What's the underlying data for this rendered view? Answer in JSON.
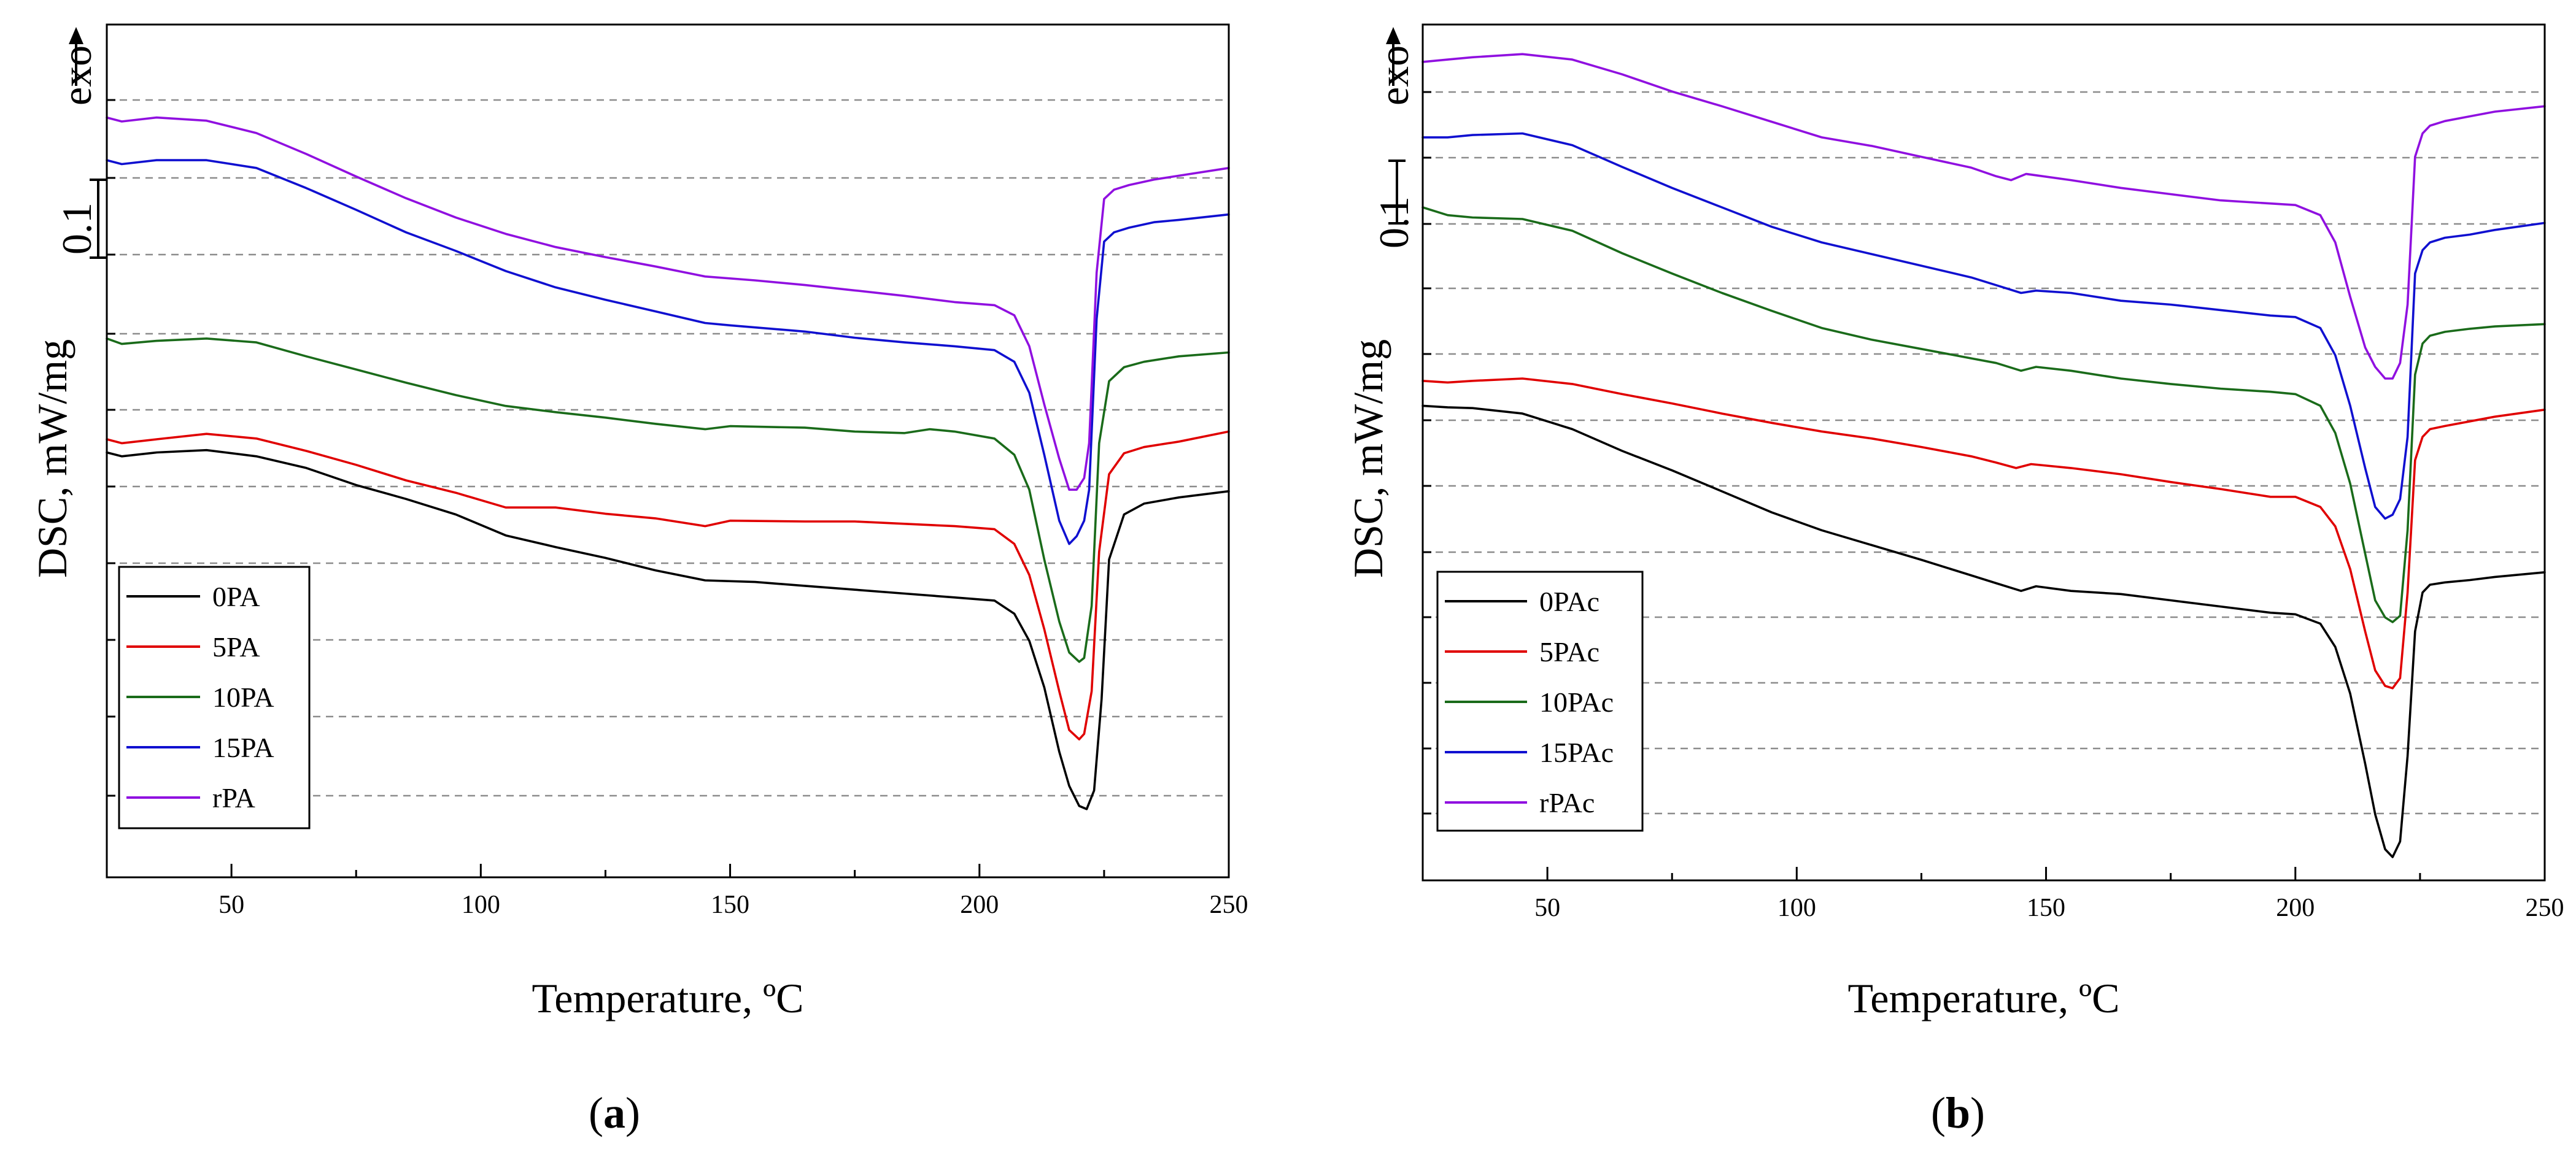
{
  "chart_data": [
    {
      "type": "line",
      "panel_label": "a",
      "xlabel": "Temperature, ºC",
      "ylabel": "DSC, mW/mg",
      "exo_label": "exo",
      "scale_bar_label": "0.1",
      "scale_bar_value": 0.1,
      "xlim": [
        25,
        250
      ],
      "ylim": [
        0,
        1.1
      ],
      "xticks": [
        50,
        100,
        150,
        200,
        250
      ],
      "grid": "horizontal dashed",
      "legend_position": "bottom-left",
      "series": [
        {
          "name": "0PA",
          "color": "#000000",
          "x": [
            25,
            28,
            35,
            45,
            55,
            65,
            75,
            85,
            95,
            105,
            115,
            125,
            135,
            145,
            155,
            165,
            175,
            185,
            195,
            203,
            207,
            210,
            213,
            216,
            218,
            220,
            221.5,
            223,
            224.5,
            226,
            229,
            233,
            240,
            250
          ],
          "y": [
            0.548,
            0.543,
            0.548,
            0.551,
            0.543,
            0.528,
            0.506,
            0.488,
            0.468,
            0.441,
            0.426,
            0.412,
            0.396,
            0.383,
            0.381,
            0.376,
            0.371,
            0.366,
            0.361,
            0.357,
            0.34,
            0.305,
            0.245,
            0.162,
            0.118,
            0.092,
            0.088,
            0.112,
            0.23,
            0.41,
            0.468,
            0.482,
            0.49,
            0.498
          ]
        },
        {
          "name": "5PA",
          "color": "#e00000",
          "x": [
            25,
            28,
            35,
            45,
            55,
            65,
            75,
            85,
            95,
            105,
            115,
            125,
            135,
            145,
            150,
            165,
            175,
            185,
            195,
            203,
            207,
            210,
            213,
            216,
            218,
            220,
            221,
            222.5,
            224,
            226,
            229,
            233,
            240,
            250
          ],
          "y": [
            0.565,
            0.56,
            0.565,
            0.572,
            0.566,
            0.55,
            0.532,
            0.512,
            0.496,
            0.477,
            0.477,
            0.469,
            0.463,
            0.453,
            0.46,
            0.459,
            0.459,
            0.456,
            0.453,
            0.449,
            0.43,
            0.39,
            0.32,
            0.24,
            0.19,
            0.178,
            0.185,
            0.24,
            0.42,
            0.52,
            0.547,
            0.555,
            0.562,
            0.575
          ]
        },
        {
          "name": "10PA",
          "color": "#1a6b1a",
          "x": [
            25,
            28,
            35,
            45,
            55,
            65,
            75,
            85,
            95,
            105,
            115,
            125,
            135,
            145,
            150,
            165,
            175,
            185,
            190,
            195,
            203,
            207,
            210,
            213,
            216,
            218,
            220,
            221,
            222.5,
            224,
            226,
            229,
            233,
            240,
            250
          ],
          "y": [
            0.695,
            0.688,
            0.692,
            0.695,
            0.69,
            0.672,
            0.655,
            0.638,
            0.622,
            0.608,
            0.6,
            0.593,
            0.585,
            0.578,
            0.582,
            0.58,
            0.575,
            0.573,
            0.578,
            0.575,
            0.566,
            0.545,
            0.5,
            0.41,
            0.33,
            0.29,
            0.278,
            0.283,
            0.35,
            0.56,
            0.64,
            0.658,
            0.665,
            0.672,
            0.677
          ]
        },
        {
          "name": "15PA",
          "color": "#1010d0",
          "x": [
            25,
            28,
            35,
            45,
            55,
            65,
            75,
            85,
            95,
            105,
            115,
            125,
            135,
            145,
            150,
            165,
            175,
            185,
            195,
            203,
            207,
            210,
            213,
            216,
            218,
            219.5,
            221,
            222,
            223.5,
            225,
            227,
            230,
            235,
            240,
            250
          ],
          "y": [
            0.925,
            0.92,
            0.925,
            0.925,
            0.915,
            0.889,
            0.861,
            0.832,
            0.808,
            0.782,
            0.761,
            0.745,
            0.73,
            0.715,
            0.712,
            0.704,
            0.696,
            0.69,
            0.685,
            0.68,
            0.665,
            0.625,
            0.545,
            0.46,
            0.43,
            0.44,
            0.46,
            0.5,
            0.72,
            0.82,
            0.832,
            0.838,
            0.845,
            0.848,
            0.855
          ]
        },
        {
          "name": "rPA",
          "color": "#9010e0",
          "x": [
            25,
            28,
            35,
            45,
            55,
            65,
            75,
            85,
            95,
            105,
            115,
            125,
            135,
            145,
            155,
            165,
            175,
            185,
            195,
            203,
            207,
            210,
            213,
            216,
            218,
            219.5,
            221,
            222,
            223.5,
            225,
            227,
            230,
            235,
            240,
            250
          ],
          "y": [
            0.98,
            0.975,
            0.98,
            0.976,
            0.96,
            0.933,
            0.904,
            0.876,
            0.851,
            0.83,
            0.813,
            0.8,
            0.788,
            0.775,
            0.77,
            0.764,
            0.757,
            0.75,
            0.742,
            0.738,
            0.725,
            0.685,
            0.61,
            0.54,
            0.5,
            0.5,
            0.515,
            0.56,
            0.78,
            0.875,
            0.887,
            0.893,
            0.9,
            0.905,
            0.915
          ]
        }
      ]
    },
    {
      "type": "line",
      "panel_label": "b",
      "xlabel": "Temperature, ºC",
      "ylabel": "DSC, mW/mg",
      "exo_label": "exo",
      "scale_bar_label": "0.1",
      "scale_bar_value": 0.1,
      "xlim": [
        25,
        250
      ],
      "ylim": [
        0,
        1.1
      ],
      "xticks": [
        50,
        100,
        150,
        200,
        250
      ],
      "grid": "horizontal dashed",
      "legend_position": "bottom-left",
      "series": [
        {
          "name": "0PAc",
          "color": "#000000",
          "x": [
            25,
            30,
            35,
            45,
            55,
            65,
            75,
            85,
            95,
            105,
            115,
            125,
            135,
            140,
            145,
            148,
            155,
            165,
            175,
            185,
            195,
            200,
            205,
            208,
            211,
            214,
            216,
            218,
            219.5,
            221,
            222.5,
            224,
            225.5,
            227,
            230,
            235,
            240,
            250
          ],
          "y": [
            0.61,
            0.608,
            0.607,
            0.6,
            0.58,
            0.552,
            0.527,
            0.5,
            0.473,
            0.45,
            0.431,
            0.412,
            0.392,
            0.382,
            0.372,
            0.378,
            0.372,
            0.368,
            0.36,
            0.352,
            0.344,
            0.342,
            0.33,
            0.3,
            0.24,
            0.15,
            0.085,
            0.04,
            0.03,
            0.05,
            0.16,
            0.32,
            0.37,
            0.38,
            0.383,
            0.386,
            0.39,
            0.396
          ]
        },
        {
          "name": "5PAc",
          "color": "#e00000",
          "x": [
            25,
            30,
            35,
            45,
            55,
            65,
            75,
            85,
            95,
            105,
            115,
            125,
            135,
            140,
            144,
            147,
            155,
            165,
            175,
            185,
            195,
            200,
            205,
            208,
            211,
            214,
            216,
            218,
            219.5,
            221,
            222.5,
            224,
            225.5,
            227,
            230,
            235,
            240,
            250
          ],
          "y": [
            0.642,
            0.64,
            0.642,
            0.645,
            0.638,
            0.625,
            0.613,
            0.6,
            0.588,
            0.577,
            0.568,
            0.557,
            0.545,
            0.537,
            0.53,
            0.535,
            0.53,
            0.522,
            0.512,
            0.503,
            0.493,
            0.493,
            0.48,
            0.455,
            0.4,
            0.32,
            0.27,
            0.25,
            0.247,
            0.26,
            0.37,
            0.54,
            0.57,
            0.58,
            0.584,
            0.59,
            0.596,
            0.605
          ]
        },
        {
          "name": "10PAc",
          "color": "#1a6b1a",
          "x": [
            25,
            30,
            35,
            45,
            55,
            65,
            75,
            85,
            95,
            105,
            115,
            125,
            135,
            140,
            145,
            148,
            155,
            165,
            175,
            185,
            195,
            200,
            205,
            208,
            211,
            214,
            216,
            218,
            219.5,
            221,
            222.5,
            224,
            225.5,
            227,
            230,
            235,
            240,
            250
          ],
          "y": [
            0.865,
            0.855,
            0.852,
            0.85,
            0.835,
            0.806,
            0.78,
            0.755,
            0.732,
            0.71,
            0.695,
            0.683,
            0.671,
            0.665,
            0.655,
            0.66,
            0.655,
            0.645,
            0.638,
            0.632,
            0.628,
            0.625,
            0.61,
            0.575,
            0.51,
            0.42,
            0.36,
            0.338,
            0.332,
            0.34,
            0.45,
            0.65,
            0.69,
            0.7,
            0.705,
            0.709,
            0.712,
            0.715
          ]
        },
        {
          "name": "15PAc",
          "color": "#1010d0",
          "x": [
            25,
            30,
            35,
            45,
            55,
            65,
            75,
            85,
            95,
            105,
            115,
            125,
            135,
            140,
            145,
            148,
            155,
            165,
            175,
            185,
            195,
            200,
            205,
            208,
            211,
            214,
            216,
            218,
            219.5,
            221,
            222.5,
            224,
            225.5,
            227,
            230,
            235,
            240,
            250
          ],
          "y": [
            0.955,
            0.955,
            0.958,
            0.96,
            0.945,
            0.917,
            0.89,
            0.865,
            0.84,
            0.82,
            0.805,
            0.79,
            0.775,
            0.765,
            0.755,
            0.758,
            0.755,
            0.745,
            0.74,
            0.733,
            0.726,
            0.724,
            0.71,
            0.675,
            0.61,
            0.53,
            0.48,
            0.465,
            0.47,
            0.49,
            0.57,
            0.78,
            0.81,
            0.82,
            0.826,
            0.83,
            0.836,
            0.845
          ]
        },
        {
          "name": "rPAc",
          "color": "#9010e0",
          "x": [
            25,
            30,
            35,
            45,
            55,
            65,
            75,
            85,
            95,
            105,
            115,
            125,
            135,
            140,
            143,
            146,
            155,
            165,
            175,
            185,
            195,
            200,
            205,
            208,
            211,
            214,
            216,
            218,
            219.5,
            221,
            222.5,
            224,
            225.5,
            227,
            230,
            235,
            240,
            250
          ],
          "y": [
            1.052,
            1.055,
            1.058,
            1.062,
            1.055,
            1.036,
            1.014,
            0.995,
            0.975,
            0.955,
            0.944,
            0.93,
            0.916,
            0.905,
            0.9,
            0.908,
            0.9,
            0.89,
            0.882,
            0.874,
            0.87,
            0.868,
            0.855,
            0.82,
            0.75,
            0.685,
            0.66,
            0.645,
            0.645,
            0.665,
            0.74,
            0.93,
            0.96,
            0.97,
            0.976,
            0.982,
            0.988,
            0.995
          ]
        }
      ]
    }
  ]
}
